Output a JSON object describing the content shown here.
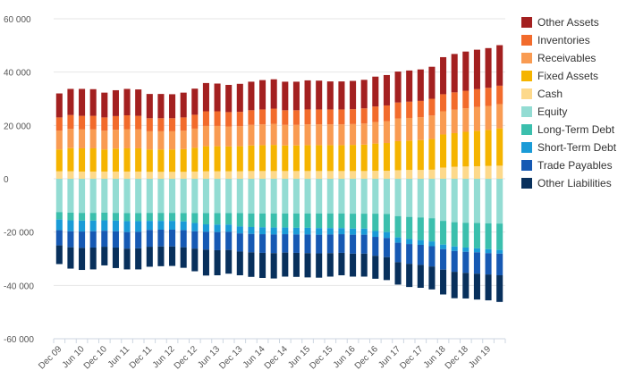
{
  "chart_data": {
    "type": "bar",
    "stacked": true,
    "grid": true,
    "legend_position": "right",
    "ylim": [
      -60000,
      60000
    ],
    "yticks": [
      -60000,
      -40000,
      -20000,
      0,
      20000,
      40000,
      60000
    ],
    "ytick_labels": [
      "-60 000",
      "-40 000",
      "-20 000",
      "0",
      "20 000",
      "40 000",
      "60 000"
    ],
    "categories": [
      "Dec 09",
      "Mar 10",
      "Jun 10",
      "Sep 10",
      "Dec 10",
      "Mar 11",
      "Jun 11",
      "Sep 11",
      "Dec 11",
      "Mar 12",
      "Jun 12",
      "Sep 12",
      "Dec 12",
      "Mar 13",
      "Jun 13",
      "Sep 13",
      "Dec 13",
      "Mar 14",
      "Jun 14",
      "Sep 14",
      "Dec 14",
      "Mar 15",
      "Jun 15",
      "Sep 15",
      "Dec 15",
      "Mar 16",
      "Jun 16",
      "Sep 16",
      "Dec 16",
      "Mar 17",
      "Jun 17",
      "Sep 17",
      "Dec 17",
      "Mar 18",
      "Jun 18",
      "Sep 18",
      "Dec 18",
      "Mar 19",
      "Jun 19",
      "Sep 19"
    ],
    "xtick_labels": [
      "Dec 09",
      "Jun 10",
      "Dec 10",
      "Jun 11",
      "Dec 11",
      "Jun 12",
      "Dec 12",
      "Jun 13",
      "Dec 13",
      "Jun 14",
      "Dec 14",
      "Jun 15",
      "Dec 15",
      "Jun 16",
      "Dec 16",
      "Jun 17",
      "Dec 17",
      "Jun 18",
      "Dec 18",
      "Jun 19"
    ],
    "assets": {
      "fixed_assets_colors": "#F5B400",
      "series": [
        {
          "name": "Cash",
          "color": "#FDD98B",
          "values": [
            2800,
            2800,
            2700,
            2700,
            2700,
            2700,
            2700,
            2700,
            2600,
            2600,
            2600,
            2600,
            2700,
            2800,
            2800,
            2800,
            2800,
            2900,
            2900,
            2900,
            2900,
            2900,
            2900,
            2900,
            2900,
            2900,
            2900,
            2900,
            3000,
            3000,
            3200,
            3300,
            3300,
            3400,
            4200,
            4500,
            4600,
            4700,
            4800,
            4900
          ]
        },
        {
          "name": "Fixed Assets",
          "color": "#F5B400",
          "values": [
            8200,
            8700,
            8700,
            8700,
            8300,
            8600,
            8700,
            8700,
            8400,
            8400,
            8400,
            8500,
            8900,
            9400,
            9400,
            9300,
            9400,
            9600,
            9700,
            9800,
            9600,
            9600,
            9700,
            9700,
            9700,
            9700,
            9800,
            9900,
            10200,
            10400,
            10900,
            11000,
            11200,
            11500,
            12400,
            12600,
            13000,
            13300,
            13500,
            14000
          ]
        },
        {
          "name": "Receivables",
          "color": "#F99B52",
          "values": [
            7000,
            7200,
            7100,
            7100,
            7000,
            7100,
            7200,
            7100,
            6800,
            6800,
            6800,
            6900,
            7200,
            7600,
            7600,
            7500,
            7500,
            7700,
            7800,
            7900,
            7700,
            7700,
            7800,
            7800,
            7800,
            7800,
            7800,
            7900,
            8100,
            8200,
            8500,
            8500,
            8600,
            8800,
            8700,
            8800,
            8800,
            8900,
            9000,
            9100
          ]
        },
        {
          "name": "Inventories",
          "color": "#F26B2C",
          "values": [
            5000,
            5200,
            5100,
            5100,
            5000,
            5100,
            5200,
            5100,
            4900,
            4900,
            4900,
            5000,
            5200,
            5500,
            5500,
            5400,
            5400,
            5500,
            5600,
            5700,
            5500,
            5500,
            5600,
            5600,
            5600,
            5600,
            5600,
            5700,
            5800,
            5900,
            6000,
            6100,
            6100,
            6300,
            6400,
            6500,
            6600,
            6700,
            6800,
            6900
          ]
        },
        {
          "name": "Other Assets",
          "color": "#A32020",
          "values": [
            9000,
            9800,
            10100,
            10000,
            9300,
            9700,
            9900,
            9900,
            9100,
            9100,
            9000,
            9300,
            9800,
            10600,
            10400,
            10200,
            10500,
            10700,
            11000,
            11000,
            10700,
            10700,
            10900,
            10800,
            10500,
            10500,
            10600,
            10700,
            11200,
            11400,
            11600,
            11700,
            11800,
            12000,
            13900,
            14400,
            14700,
            14800,
            14900,
            15200
          ]
        }
      ]
    },
    "liabilities": {
      "series": [
        {
          "name": "Equity",
          "color": "#93DCD3",
          "values": [
            -12500,
            -12700,
            -12800,
            -12800,
            -12700,
            -12800,
            -12900,
            -12900,
            -12800,
            -12800,
            -12800,
            -12900,
            -12900,
            -12900,
            -12900,
            -12900,
            -12900,
            -13000,
            -13000,
            -13000,
            -13000,
            -13000,
            -13000,
            -13000,
            -13000,
            -13000,
            -13100,
            -13100,
            -13100,
            -13200,
            -14000,
            -14300,
            -14500,
            -14800,
            -15800,
            -16300,
            -16500,
            -16600,
            -16700,
            -16800
          ]
        },
        {
          "name": "Long-Term Debt",
          "color": "#3BBFAD",
          "values": [
            -2800,
            -2900,
            -2900,
            -2900,
            -2900,
            -2900,
            -3000,
            -3000,
            -3000,
            -3000,
            -3000,
            -3100,
            -3700,
            -4200,
            -4300,
            -4300,
            -5000,
            -5100,
            -5200,
            -5300,
            -5300,
            -5400,
            -5400,
            -5500,
            -5500,
            -5500,
            -5600,
            -5600,
            -6500,
            -6800,
            -8000,
            -8300,
            -8500,
            -8700,
            -8900,
            -9100,
            -9300,
            -9500,
            -9700,
            -9900
          ]
        },
        {
          "name": "Short-Term Debt",
          "color": "#1A9BD7",
          "values": [
            -4000,
            -4100,
            -4100,
            -4000,
            -3900,
            -4000,
            -4100,
            -4000,
            -3400,
            -3300,
            -3300,
            -3300,
            -3100,
            -2800,
            -2800,
            -2700,
            -2600,
            -2600,
            -2600,
            -2600,
            -2500,
            -2500,
            -2500,
            -2500,
            -2400,
            -2300,
            -2300,
            -2300,
            -2200,
            -2200,
            -2000,
            -1900,
            -1800,
            -1800,
            -1700,
            -1700,
            -1600,
            -1500,
            -1500,
            -1400
          ]
        },
        {
          "name": "Trade Payables",
          "color": "#1659B3",
          "values": [
            -5700,
            -6000,
            -6100,
            -6100,
            -6000,
            -6100,
            -6200,
            -6200,
            -6300,
            -6300,
            -6300,
            -6400,
            -6500,
            -6700,
            -6800,
            -6800,
            -6800,
            -6900,
            -7000,
            -7000,
            -6900,
            -6900,
            -7000,
            -7000,
            -7000,
            -7000,
            -7100,
            -7100,
            -7100,
            -7200,
            -7300,
            -7400,
            -7500,
            -7600,
            -7700,
            -7800,
            -7900,
            -8000,
            -8000,
            -8100
          ]
        },
        {
          "name": "Other Liabilities",
          "color": "#08305C",
          "values": [
            -7000,
            -8000,
            -8300,
            -8200,
            -7000,
            -7700,
            -7800,
            -7900,
            -7500,
            -7400,
            -7300,
            -7700,
            -8500,
            -9700,
            -9400,
            -8900,
            -8900,
            -9200,
            -9400,
            -9500,
            -9000,
            -9000,
            -9100,
            -9100,
            -8800,
            -8400,
            -8600,
            -8600,
            -8600,
            -8600,
            -8400,
            -8700,
            -8600,
            -8600,
            -9300,
            -9900,
            -9600,
            -9700,
            -9700,
            -10000
          ]
        }
      ]
    },
    "legend": [
      {
        "name": "Other Assets",
        "color": "#A32020"
      },
      {
        "name": "Inventories",
        "color": "#F26B2C"
      },
      {
        "name": "Receivables",
        "color": "#F99B52"
      },
      {
        "name": "Fixed Assets",
        "color": "#F5B400"
      },
      {
        "name": "Cash",
        "color": "#FDD98B"
      },
      {
        "name": "Equity",
        "color": "#93DCD3"
      },
      {
        "name": "Long-Term Debt",
        "color": "#3BBFAD"
      },
      {
        "name": "Short-Term Debt",
        "color": "#1A9BD7"
      },
      {
        "name": "Trade Payables",
        "color": "#1659B3"
      },
      {
        "name": "Other Liabilities",
        "color": "#08305C"
      }
    ]
  }
}
